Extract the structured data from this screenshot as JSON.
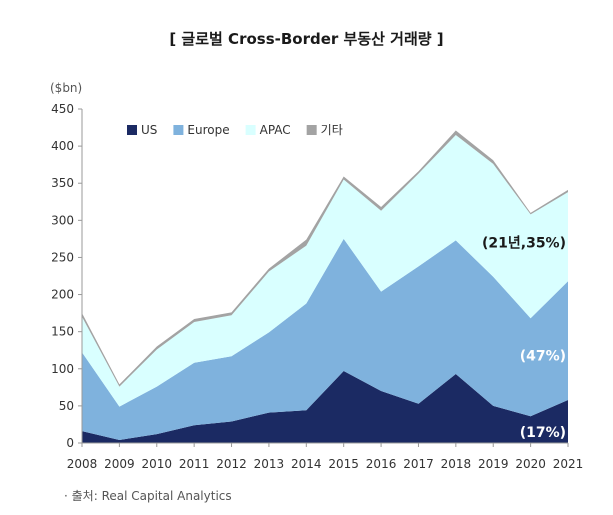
{
  "title": "[ 글로벌 Cross-Border 부동산 거래량 ]",
  "source": "· 출처: Real Capital Analytics",
  "chart_data": {
    "type": "area",
    "stacked": true,
    "unit_label": "($bn)",
    "x": [
      "2008",
      "2009",
      "2010",
      "2011",
      "2012",
      "2013",
      "2014",
      "2015",
      "2016",
      "2017",
      "2018",
      "2019",
      "2020",
      "2021"
    ],
    "ylim": [
      0,
      450
    ],
    "yticks": [
      0,
      50,
      100,
      150,
      200,
      250,
      300,
      350,
      400,
      450
    ],
    "grid": false,
    "legend_position": "top-left",
    "series": [
      {
        "name": "US",
        "color": "#1b2a63",
        "values": [
          16,
          4,
          12,
          24,
          29,
          41,
          44,
          97,
          70,
          53,
          93,
          50,
          36,
          58
        ]
      },
      {
        "name": "Europe",
        "color": "#7fb2dd",
        "values": [
          106,
          45,
          64,
          84,
          88,
          108,
          144,
          178,
          134,
          185,
          180,
          174,
          132,
          160
        ]
      },
      {
        "name": "APAC",
        "color": "#d9ffff",
        "values": [
          48,
          27,
          50,
          55,
          55,
          82,
          78,
          80,
          109,
          125,
          142,
          152,
          140,
          120
        ]
      },
      {
        "name": "기타",
        "color": "#a3a3a3",
        "values": [
          5,
          3,
          4,
          4,
          4,
          4,
          8,
          4,
          5,
          3,
          6,
          5,
          2,
          3
        ]
      }
    ],
    "annotations": [
      {
        "text": "(21년,35%)",
        "x": "2021",
        "y": 270,
        "color": "#1a1a1a"
      },
      {
        "text": "(47%)",
        "x": "2021",
        "y": 118,
        "color": "#ffffff"
      },
      {
        "text": "(17%)",
        "x": "2021",
        "y": 15,
        "color": "#ffffff"
      }
    ]
  }
}
